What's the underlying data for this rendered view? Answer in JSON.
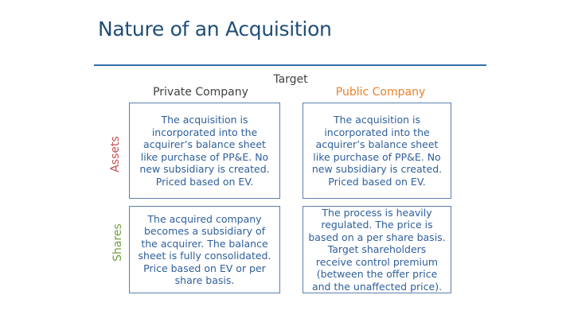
{
  "title": "Nature of an Acquisition",
  "header": "Target",
  "columns": {
    "private": "Private Company",
    "public": "Public Company"
  },
  "rows": {
    "assets": "Assets",
    "shares": "Shares"
  },
  "cells": {
    "assets_private": "The acquisition is incorporated into the acquirer’s balance sheet like purchase of PP&E. No new subsidiary is created. Priced based on EV.",
    "assets_public": "The acquisition is incorporated into the acquirer’s balance sheet like purchase of PP&E. No new subsidiary is created. Priced based on EV.",
    "shares_private": "The acquired company becomes a subsidiary of the acquirer. The balance sheet is fully consolidated. Price based on EV or per share basis.",
    "shares_public": "The process  is heavily regulated. The price is based on a per share basis. Target shareholders receive control premium (between the offer price and the unaffected price)."
  },
  "colors": {
    "title": "#1f4e79",
    "assets": "#c0504d",
    "shares": "#70a040",
    "public": "#e8822a",
    "body": "#2e5f9a"
  }
}
